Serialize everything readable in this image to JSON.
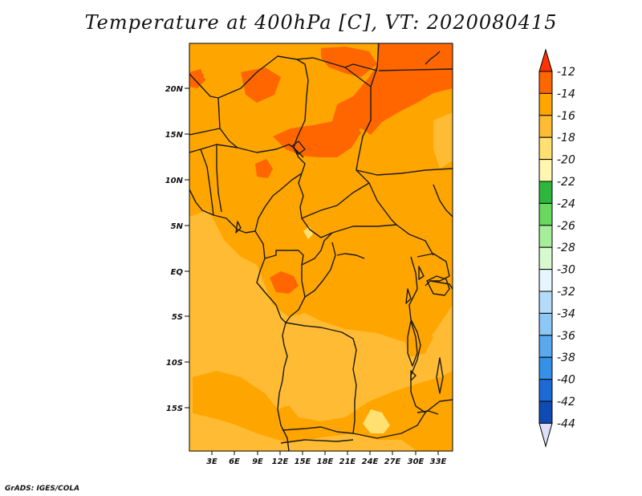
{
  "title": "Temperature at 400hPa [C], VT: 2020080415",
  "footer": "GrADS: IGES/COLA",
  "map": {
    "lat_labels": [
      "20N",
      "15N",
      "10N",
      "5N",
      "EQ",
      "5S",
      "10S",
      "15S"
    ],
    "lon_labels": [
      "3E",
      "6E",
      "9E",
      "12E",
      "15E",
      "18E",
      "21E",
      "24E",
      "27E",
      "30E",
      "33E"
    ],
    "base_color": "#ffa500"
  },
  "colorbar": {
    "labels": [
      "-12",
      "-14",
      "-16",
      "-18",
      "-20",
      "-22",
      "-24",
      "-26",
      "-28",
      "-30",
      "-32",
      "-34",
      "-36",
      "-38",
      "-40",
      "-42",
      "-44"
    ],
    "colors": [
      "#ff6600",
      "#ffa500",
      "#ffbb33",
      "#ffe070",
      "#fff6b0",
      "#2db83d",
      "#68d860",
      "#a6ef9a",
      "#d8f8d0",
      "#e6f6ff",
      "#b4dcfa",
      "#8cc8f6",
      "#5aa8ee",
      "#3590e8",
      "#1b6ad6",
      "#0f4bb4",
      "#0a1e7a",
      "#dde0f6"
    ]
  }
}
